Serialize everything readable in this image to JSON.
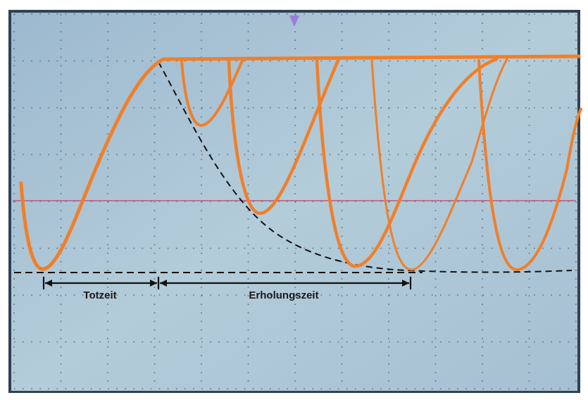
{
  "annotations": {
    "dead_time": "Totzeit",
    "recovery_time": "Erholungszeit"
  }
}
